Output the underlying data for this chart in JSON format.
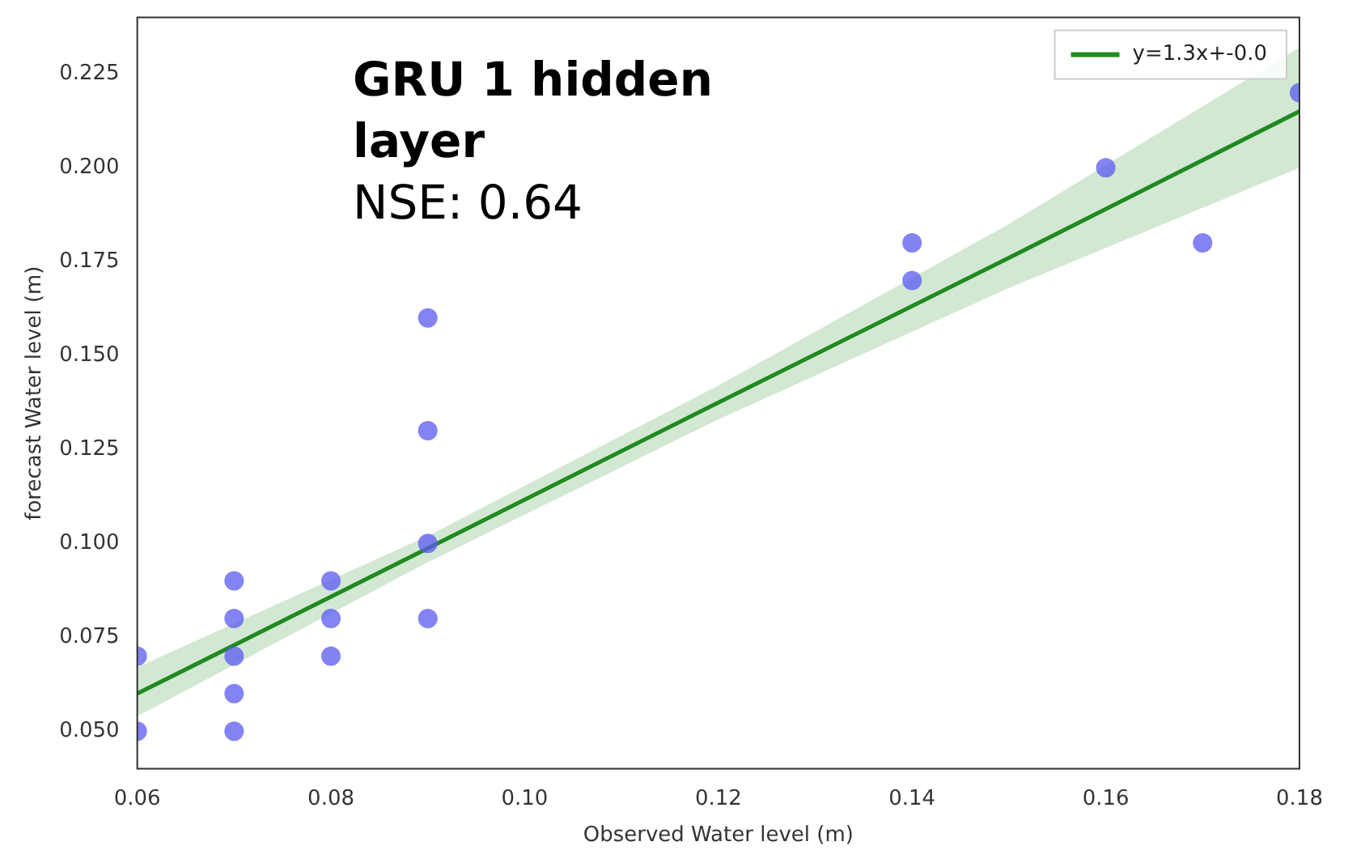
{
  "chart_data": {
    "type": "scatter",
    "title": "GRU 1 hidden layer",
    "annotations": [
      "NSE: 0.64"
    ],
    "xlabel": "Observed Water level (m)",
    "ylabel": "forecast Water level (m)",
    "xlim": [
      0.06,
      0.18
    ],
    "ylim": [
      0.04,
      0.24
    ],
    "xticks": [
      {
        "value": 0.06,
        "label": "0.06"
      },
      {
        "value": 0.08,
        "label": "0.08"
      },
      {
        "value": 0.1,
        "label": "0.10"
      },
      {
        "value": 0.12,
        "label": "0.12"
      },
      {
        "value": 0.14,
        "label": "0.14"
      },
      {
        "value": 0.16,
        "label": "0.16"
      },
      {
        "value": 0.18,
        "label": "0.18"
      }
    ],
    "yticks": [
      {
        "value": 0.05,
        "label": "0.050"
      },
      {
        "value": 0.075,
        "label": "0.075"
      },
      {
        "value": 0.1,
        "label": "0.100"
      },
      {
        "value": 0.125,
        "label": "0.125"
      },
      {
        "value": 0.15,
        "label": "0.150"
      },
      {
        "value": 0.175,
        "label": "0.175"
      },
      {
        "value": 0.2,
        "label": "0.200"
      },
      {
        "value": 0.225,
        "label": "0.225"
      }
    ],
    "grid": false,
    "legend": "top right",
    "series": [
      {
        "type": "scatter",
        "marker": "circle",
        "color": "#5a5af0",
        "x": [
          0.06,
          0.06,
          0.07,
          0.07,
          0.07,
          0.07,
          0.07,
          0.08,
          0.08,
          0.08,
          0.09,
          0.09,
          0.09,
          0.09,
          0.14,
          0.14,
          0.16,
          0.17,
          0.18
        ],
        "values": [
          0.07,
          0.05,
          0.09,
          0.08,
          0.07,
          0.06,
          0.05,
          0.09,
          0.08,
          0.07,
          0.16,
          0.13,
          0.1,
          0.08,
          0.18,
          0.17,
          0.2,
          0.18,
          0.22
        ]
      },
      {
        "type": "line",
        "name": "y=1.3x+-0.0",
        "color": "#1f8a1f",
        "x": [
          0.06,
          0.09,
          0.12,
          0.15,
          0.18
        ],
        "values": [
          0.06,
          0.0987,
          0.1375,
          0.176,
          0.215
        ],
        "lower": [
          0.054,
          0.095,
          0.133,
          0.168,
          0.2
        ],
        "upper": [
          0.067,
          0.102,
          0.142,
          0.185,
          0.232
        ]
      }
    ]
  }
}
